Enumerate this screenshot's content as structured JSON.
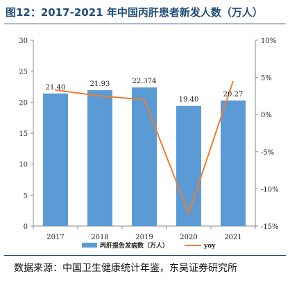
{
  "title": "图12：2017-2021 年中国丙肝患者新发人数（万人）",
  "source": "数据来源：中国卫生健康统计年鉴，东吴证券研究所",
  "colors": {
    "bar": "#5b9bd5",
    "line": "#ed7d31",
    "axis": "#888888",
    "text": "#222222"
  },
  "chart_data": {
    "type": "bar+line",
    "categories": [
      "2017",
      "2018",
      "2019",
      "2020",
      "2021"
    ],
    "series": [
      {
        "name": "丙肝报告发病数（万人）",
        "type": "bar",
        "axis": "left",
        "values": [
          21.4,
          21.93,
          22.374,
          19.4,
          20.27
        ],
        "labels": [
          "21.40",
          "21.93",
          "22.374",
          "19.40",
          "20.27"
        ]
      },
      {
        "name": "yoy",
        "type": "line",
        "axis": "right",
        "values": [
          3.3,
          2.5,
          2.0,
          -13.3,
          4.5
        ]
      }
    ],
    "y_left": {
      "min": 0,
      "max": 30,
      "ticks": [
        0,
        5,
        10,
        15,
        20,
        25,
        30
      ]
    },
    "y_right": {
      "min": -15,
      "max": 10,
      "ticks": [
        -15,
        -10,
        -5,
        0,
        5,
        10
      ],
      "tick_labels": [
        "-15%",
        "-10%",
        "-5%",
        "0%",
        "5%",
        "10%"
      ]
    },
    "legend": "bottom",
    "grid": false
  }
}
